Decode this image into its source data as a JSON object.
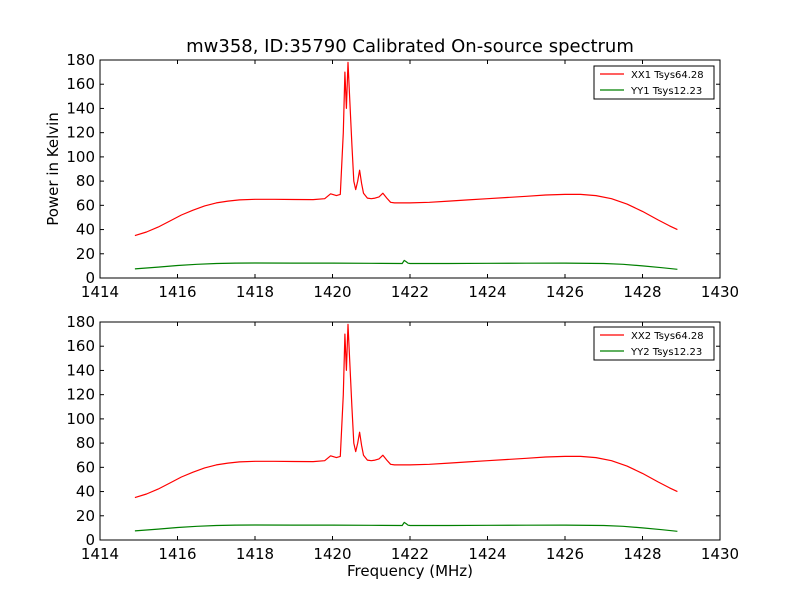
{
  "chart_data": [
    {
      "type": "line",
      "title": "mw358, ID:35790 Calibrated On-source spectrum",
      "xlabel": "",
      "ylabel": "Power in Kelvin",
      "xlim": [
        1414,
        1430
      ],
      "ylim": [
        0,
        180
      ],
      "xticks": [
        "1414",
        "1416",
        "1418",
        "1420",
        "1422",
        "1424",
        "1426",
        "1428",
        "1430"
      ],
      "yticks": [
        "0",
        "20",
        "40",
        "60",
        "80",
        "100",
        "120",
        "140",
        "160",
        "180"
      ],
      "legend_position": "top-right",
      "series": [
        {
          "name": "XX1 Tsys64.28",
          "color": "#ff0000",
          "x": [
            1414.9,
            1415.2,
            1415.5,
            1415.8,
            1416.1,
            1416.4,
            1416.7,
            1417.0,
            1417.3,
            1417.6,
            1418.0,
            1418.5,
            1419.0,
            1419.5,
            1419.8,
            1419.95,
            1420.1,
            1420.2,
            1420.28,
            1420.32,
            1420.36,
            1420.4,
            1420.44,
            1420.5,
            1420.55,
            1420.6,
            1420.65,
            1420.7,
            1420.75,
            1420.8,
            1420.9,
            1421.0,
            1421.1,
            1421.2,
            1421.3,
            1421.4,
            1421.5,
            1421.6,
            1421.8,
            1422.0,
            1422.5,
            1423.0,
            1423.5,
            1424.0,
            1424.5,
            1425.0,
            1425.5,
            1426.0,
            1426.4,
            1426.8,
            1427.2,
            1427.6,
            1428.0,
            1428.4,
            1428.7,
            1428.9
          ],
          "y": [
            35,
            38,
            42,
            47,
            52,
            56,
            59.5,
            62,
            63.5,
            64.5,
            65,
            65,
            64.8,
            64.7,
            65.5,
            69.5,
            68,
            69,
            120,
            170,
            140,
            178,
            150,
            110,
            80,
            73,
            80,
            89,
            78,
            70,
            66,
            65.5,
            66,
            67,
            70,
            66,
            62.5,
            62,
            62,
            62,
            62.5,
            63.5,
            64.5,
            65.5,
            66.5,
            67.5,
            68.5,
            69,
            69,
            68,
            65.5,
            61,
            55,
            48,
            43,
            40
          ]
        },
        {
          "name": "YY1 Tsys12.23",
          "color": "#008000",
          "x": [
            1414.9,
            1415.5,
            1416.0,
            1416.5,
            1417.0,
            1417.5,
            1418.0,
            1419.0,
            1420.0,
            1421.0,
            1421.8,
            1421.85,
            1421.9,
            1421.95,
            1422.0,
            1423.0,
            1424.0,
            1425.0,
            1426.0,
            1427.0,
            1427.5,
            1428.0,
            1428.5,
            1428.9
          ],
          "y": [
            7.5,
            9,
            10.3,
            11.3,
            12,
            12.3,
            12.4,
            12.3,
            12.3,
            12.1,
            12,
            14.5,
            13.5,
            12.2,
            12,
            12,
            12.1,
            12.2,
            12.3,
            12,
            11.3,
            10,
            8.5,
            7.2
          ]
        }
      ]
    },
    {
      "type": "line",
      "title": "",
      "xlabel": "Frequency (MHz)",
      "ylabel": "",
      "xlim": [
        1414,
        1430
      ],
      "ylim": [
        0,
        180
      ],
      "xticks": [
        "1414",
        "1416",
        "1418",
        "1420",
        "1422",
        "1424",
        "1426",
        "1428",
        "1430"
      ],
      "yticks": [
        "0",
        "20",
        "40",
        "60",
        "80",
        "100",
        "120",
        "140",
        "160",
        "180"
      ],
      "legend_position": "top-right",
      "series": [
        {
          "name": "XX2 Tsys64.28",
          "color": "#ff0000",
          "x": [
            1414.9,
            1415.2,
            1415.5,
            1415.8,
            1416.1,
            1416.4,
            1416.7,
            1417.0,
            1417.3,
            1417.6,
            1418.0,
            1418.5,
            1419.0,
            1419.5,
            1419.8,
            1419.95,
            1420.1,
            1420.2,
            1420.28,
            1420.32,
            1420.36,
            1420.4,
            1420.44,
            1420.5,
            1420.55,
            1420.6,
            1420.65,
            1420.7,
            1420.75,
            1420.8,
            1420.9,
            1421.0,
            1421.1,
            1421.2,
            1421.3,
            1421.4,
            1421.5,
            1421.6,
            1421.8,
            1422.0,
            1422.5,
            1423.0,
            1423.5,
            1424.0,
            1424.5,
            1425.0,
            1425.5,
            1426.0,
            1426.4,
            1426.8,
            1427.2,
            1427.6,
            1428.0,
            1428.4,
            1428.7,
            1428.9
          ],
          "y": [
            35,
            38,
            42,
            47,
            52,
            56,
            59.5,
            62,
            63.5,
            64.5,
            65,
            65,
            64.8,
            64.7,
            65.5,
            69.5,
            68,
            69,
            120,
            170,
            140,
            178,
            150,
            110,
            80,
            73,
            80,
            89,
            78,
            70,
            66,
            65.5,
            66,
            67,
            70,
            66,
            62.5,
            62,
            62,
            62,
            62.5,
            63.5,
            64.5,
            65.5,
            66.5,
            67.5,
            68.5,
            69,
            69,
            68,
            65.5,
            61,
            55,
            48,
            43,
            40
          ]
        },
        {
          "name": "YY2 Tsys12.23",
          "color": "#008000",
          "x": [
            1414.9,
            1415.5,
            1416.0,
            1416.5,
            1417.0,
            1417.5,
            1418.0,
            1419.0,
            1420.0,
            1421.0,
            1421.8,
            1421.85,
            1421.9,
            1421.95,
            1422.0,
            1423.0,
            1424.0,
            1425.0,
            1426.0,
            1427.0,
            1427.5,
            1428.0,
            1428.5,
            1428.9
          ],
          "y": [
            7.5,
            9,
            10.3,
            11.3,
            12,
            12.3,
            12.4,
            12.3,
            12.3,
            12.1,
            12,
            14.5,
            13.5,
            12.2,
            12,
            12,
            12.1,
            12.2,
            12.3,
            12,
            11.3,
            10,
            8.5,
            7.2
          ]
        }
      ]
    }
  ]
}
